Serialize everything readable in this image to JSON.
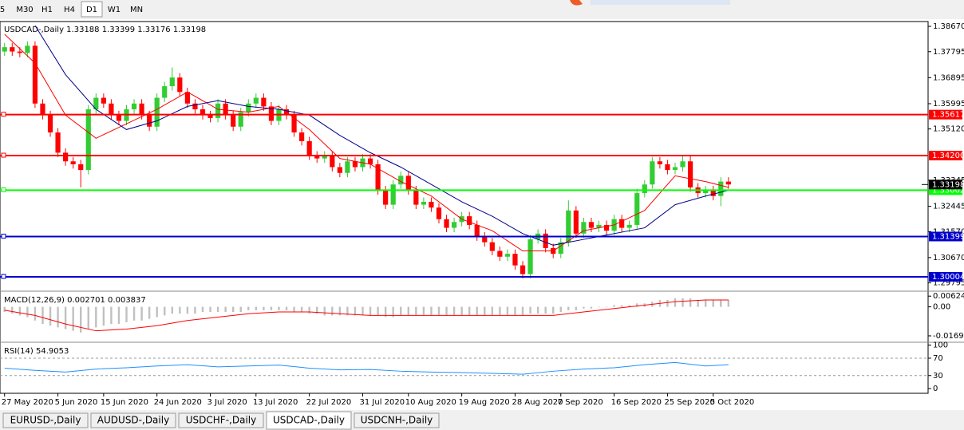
{
  "toolbar": {
    "timeframes": [
      "5",
      "M30",
      "H1",
      "H4",
      "D1",
      "W1",
      "MN"
    ],
    "active": 4
  },
  "chart_data": [
    {
      "type": "candlestick",
      "title": "USDCAD-,Daily",
      "quote": [
        1.33188,
        1.33399,
        1.33176,
        1.33198
      ],
      "up_color": "#32cd32",
      "down_color": "#ff0000",
      "open": [
        1.378,
        1.3795,
        1.378,
        1.3775,
        1.38,
        1.36,
        1.356,
        1.35,
        1.343,
        1.34,
        1.339,
        1.337,
        1.358,
        1.362,
        1.36,
        1.356,
        1.354,
        1.358,
        1.36,
        1.356,
        1.352,
        1.362,
        1.366,
        1.369,
        1.364,
        1.36,
        1.358,
        1.356,
        1.355,
        1.36,
        1.356,
        1.352,
        1.357,
        1.36,
        1.362,
        1.359,
        1.354,
        1.358,
        1.356,
        1.35,
        1.347,
        1.342,
        1.341,
        1.342,
        1.338,
        1.336,
        1.34,
        1.338,
        1.341,
        1.339,
        1.33,
        1.325,
        1.332,
        1.335,
        1.33,
        1.325,
        1.326,
        1.324,
        1.32,
        1.317,
        1.319,
        1.321,
        1.318,
        1.314,
        1.312,
        1.309,
        1.307,
        1.308,
        1.304,
        1.301,
        1.313,
        1.315,
        1.31,
        1.308,
        1.312,
        1.323,
        1.315,
        1.319,
        1.317,
        1.318,
        1.316,
        1.32,
        1.317,
        1.318,
        1.329,
        1.332,
        1.34,
        1.339,
        1.337,
        1.338,
        1.34,
        1.331,
        1.329,
        1.33,
        1.328,
        1.333
      ],
      "high": [
        1.381,
        1.381,
        1.3795,
        1.3815,
        1.3815,
        1.3615,
        1.3575,
        1.3515,
        1.3445,
        1.3415,
        1.3405,
        1.3595,
        1.3635,
        1.3635,
        1.3615,
        1.3575,
        1.3595,
        1.3615,
        1.3615,
        1.3575,
        1.3635,
        1.3675,
        1.3725,
        1.3705,
        1.3655,
        1.3615,
        1.3595,
        1.3575,
        1.3615,
        1.3615,
        1.3575,
        1.3585,
        1.3615,
        1.3635,
        1.3635,
        1.3605,
        1.3595,
        1.3595,
        1.3575,
        1.3515,
        1.3485,
        1.3435,
        1.3435,
        1.3435,
        1.3395,
        1.3415,
        1.3415,
        1.3425,
        1.3425,
        1.3405,
        1.3315,
        1.3335,
        1.3365,
        1.3365,
        1.3315,
        1.3275,
        1.3275,
        1.3255,
        1.3215,
        1.3205,
        1.3225,
        1.3225,
        1.3195,
        1.3155,
        1.3135,
        1.3105,
        1.3095,
        1.3095,
        1.3055,
        1.3145,
        1.3165,
        1.3165,
        1.3115,
        1.3135,
        1.3265,
        1.3245,
        1.3205,
        1.3205,
        1.3195,
        1.3195,
        1.3215,
        1.3215,
        1.3195,
        1.3305,
        1.3335,
        1.3415,
        1.3415,
        1.3405,
        1.3395,
        1.342,
        1.342,
        1.3325,
        1.3315,
        1.3315,
        1.3345,
        1.3345
      ],
      "low": [
        1.3765,
        1.3765,
        1.376,
        1.376,
        1.3585,
        1.3545,
        1.3485,
        1.3415,
        1.3385,
        1.3375,
        1.331,
        1.3355,
        1.3565,
        1.3585,
        1.3545,
        1.3525,
        1.3525,
        1.3565,
        1.3545,
        1.3505,
        1.3505,
        1.3605,
        1.3645,
        1.3625,
        1.3585,
        1.3565,
        1.3545,
        1.3535,
        1.3535,
        1.3545,
        1.3505,
        1.3505,
        1.3555,
        1.3585,
        1.3575,
        1.3525,
        1.3525,
        1.3545,
        1.3485,
        1.3455,
        1.3405,
        1.3395,
        1.3395,
        1.3365,
        1.3345,
        1.3345,
        1.3365,
        1.3365,
        1.3375,
        1.3285,
        1.3235,
        1.3235,
        1.3305,
        1.3285,
        1.3235,
        1.3235,
        1.3225,
        1.3185,
        1.3155,
        1.3155,
        1.3175,
        1.3165,
        1.3125,
        1.3105,
        1.3075,
        1.3055,
        1.3055,
        1.3025,
        1.2995,
        1.2995,
        1.3115,
        1.3085,
        1.3065,
        1.3065,
        1.3105,
        1.3135,
        1.3135,
        1.3155,
        1.3155,
        1.3145,
        1.3145,
        1.3155,
        1.3155,
        1.3165,
        1.3275,
        1.3305,
        1.3375,
        1.3355,
        1.3355,
        1.3365,
        1.3295,
        1.3275,
        1.3275,
        1.3265,
        1.3245,
        1.3305
      ],
      "close": [
        1.3795,
        1.378,
        1.3775,
        1.38,
        1.36,
        1.356,
        1.35,
        1.343,
        1.34,
        1.339,
        1.337,
        1.358,
        1.362,
        1.36,
        1.356,
        1.354,
        1.358,
        1.36,
        1.356,
        1.352,
        1.362,
        1.366,
        1.369,
        1.364,
        1.36,
        1.358,
        1.356,
        1.355,
        1.36,
        1.356,
        1.352,
        1.357,
        1.36,
        1.362,
        1.359,
        1.354,
        1.358,
        1.356,
        1.35,
        1.347,
        1.342,
        1.341,
        1.342,
        1.338,
        1.336,
        1.34,
        1.338,
        1.341,
        1.339,
        1.33,
        1.325,
        1.332,
        1.335,
        1.33,
        1.325,
        1.326,
        1.324,
        1.32,
        1.317,
        1.319,
        1.321,
        1.318,
        1.314,
        1.312,
        1.309,
        1.307,
        1.308,
        1.304,
        1.301,
        1.313,
        1.315,
        1.31,
        1.308,
        1.312,
        1.323,
        1.315,
        1.319,
        1.317,
        1.318,
        1.316,
        1.32,
        1.317,
        1.318,
        1.329,
        1.332,
        1.34,
        1.339,
        1.337,
        1.338,
        1.34,
        1.331,
        1.329,
        1.33,
        1.328,
        1.333,
        1.332
      ],
      "lines": [
        {
          "color": "#ff0000",
          "x": [
            0,
            4,
            8,
            12,
            16,
            20,
            24,
            28,
            32,
            36,
            40,
            44,
            48,
            52,
            56,
            60,
            64,
            68,
            72,
            76,
            80,
            84,
            88,
            92,
            95
          ],
          "values": [
            1.384,
            1.374,
            1.356,
            1.348,
            1.353,
            1.358,
            1.364,
            1.358,
            1.357,
            1.359,
            1.351,
            1.341,
            1.339,
            1.333,
            1.328,
            1.32,
            1.316,
            1.309,
            1.309,
            1.316,
            1.318,
            1.323,
            1.335,
            1.333,
            1.331
          ]
        },
        {
          "color": "#00008b",
          "x": [
            4,
            8,
            12,
            16,
            20,
            24,
            28,
            32,
            36,
            40,
            44,
            48,
            52,
            56,
            60,
            64,
            68,
            72,
            76,
            80,
            84,
            88,
            92,
            95
          ],
          "values": [
            1.387,
            1.37,
            1.358,
            1.351,
            1.354,
            1.359,
            1.361,
            1.359,
            1.358,
            1.356,
            1.349,
            1.343,
            1.338,
            1.332,
            1.326,
            1.321,
            1.315,
            1.311,
            1.313,
            1.315,
            1.317,
            1.325,
            1.328,
            1.33
          ]
        }
      ],
      "levels": [
        {
          "value": 1.35617,
          "color": "#ff0000"
        },
        {
          "value": {
            "value": 1.342,
            "label": "1.34200"
          },
          "color": "#ff0000"
        },
        {
          "value": 1.33002,
          "color": "#00ff00"
        },
        {
          "value": 1.31399,
          "color": "#0000cd"
        },
        {
          "value": 1.30004,
          "color": "#0000cd"
        }
      ],
      "last_price": 1.33198,
      "xlim": [
        -0.6,
        121.2
      ],
      "xticks": [
        {
          "value": 0,
          "label": "27 May 2020"
        },
        {
          "value": 7,
          "label": "5 Jun 2020"
        },
        {
          "value": 13,
          "label": "15 Jun 2020"
        },
        {
          "value": 20,
          "label": "24 Jun 2020"
        },
        {
          "value": 27,
          "label": "3 Jul 2020"
        },
        {
          "value": 33,
          "label": "13 Jul 2020"
        },
        {
          "value": 40,
          "label": "22 Jul 2020"
        },
        {
          "value": 47,
          "label": "31 Jul 2020"
        },
        {
          "value": 53,
          "label": "10 Aug 2020"
        },
        {
          "value": 60,
          "label": "19 Aug 2020"
        },
        {
          "value": 67,
          "label": "28 Aug 2020"
        },
        {
          "value": 73,
          "label": "7 Sep 2020"
        },
        {
          "value": 80,
          "label": "16 Sep 2020"
        },
        {
          "value": 87,
          "label": "25 Sep 2020"
        },
        {
          "value": 93,
          "label": "5 Oct 2020"
        }
      ],
      "ylim": [
        1.2959,
        1.3881
      ],
      "yticks": [
        {
          "value": 1.3867,
          "label": "1.38670"
        },
        1.37795,
        1.36895,
        1.35995,
        {
          "value": 1.3512,
          "label": "1.35120"
        },
        1.33345,
        1.32445,
        {
          "value": 1.3157,
          "label": "1.31570"
        },
        {
          "value": 1.3067,
          "label": "1.30670"
        },
        1.29795
      ]
    },
    {
      "type": "macd",
      "title": "MACD(12,26,9)",
      "readout": [
        0.002701,
        0.003837
      ],
      "color": "#c0c0c0",
      "values": [
        -0.003,
        -0.004,
        -0.005,
        -0.006,
        -0.008,
        -0.01,
        -0.011,
        -0.012,
        -0.013,
        -0.014,
        -0.015,
        -0.013,
        -0.012,
        -0.011,
        -0.01,
        -0.01,
        -0.009,
        -0.008,
        -0.008,
        -0.007,
        -0.006,
        -0.005,
        -0.004,
        -0.004,
        -0.004,
        -0.004,
        -0.003,
        -0.003,
        -0.003,
        -0.003,
        -0.003,
        -0.003,
        -0.002,
        -0.002,
        -0.002,
        -0.002,
        -0.002,
        -0.002,
        -0.003,
        -0.003,
        -0.004,
        -0.004,
        -0.005,
        -0.005,
        -0.005,
        -0.005,
        -0.005,
        -0.005,
        -0.005,
        -0.005,
        -0.006,
        -0.006,
        -0.005,
        -0.005,
        -0.005,
        -0.005,
        -0.005,
        -0.005,
        -0.005,
        -0.005,
        -0.005,
        -0.005,
        -0.005,
        -0.005,
        -0.005,
        -0.005,
        -0.005,
        -0.005,
        -0.005,
        -0.004,
        -0.004,
        -0.004,
        -0.004,
        -0.003,
        -0.002,
        -0.002,
        -0.001,
        -0.001,
        0.0,
        0.0,
        0.001,
        0.001,
        0.001,
        0.002,
        0.002,
        0.003,
        0.004,
        0.004,
        0.005,
        0.005,
        0.005,
        0.004,
        0.004,
        0.004,
        0.004,
        0.004
      ],
      "lines": [
        {
          "color": "#ff0000",
          "x": [
            0,
            4,
            8,
            12,
            16,
            20,
            24,
            28,
            32,
            36,
            40,
            44,
            48,
            52,
            56,
            60,
            64,
            68,
            72,
            76,
            80,
            84,
            88,
            92,
            95
          ],
          "values": [
            -0.002,
            -0.005,
            -0.01,
            -0.014,
            -0.013,
            -0.011,
            -0.008,
            -0.006,
            -0.004,
            -0.003,
            -0.003,
            -0.004,
            -0.005,
            -0.005,
            -0.005,
            -0.005,
            -0.005,
            -0.005,
            -0.005,
            -0.003,
            -0.001,
            0.001,
            0.003,
            0.004,
            0.004
          ]
        }
      ],
      "ylim": [
        -0.0202,
        0.0082
      ],
      "yticks": [
        0.006245,
        {
          "value": 0,
          "label": "0.00"
        },
        -0.016933
      ]
    },
    {
      "type": "rsi",
      "title": "RSI(14)",
      "readout": [
        54.9053
      ],
      "lines": [
        {
          "color": "#1e90ff",
          "x": [
            0,
            4,
            8,
            12,
            16,
            20,
            24,
            28,
            32,
            36,
            40,
            44,
            48,
            52,
            56,
            60,
            64,
            68,
            72,
            76,
            80,
            84,
            88,
            92,
            95
          ],
          "values": [
            47,
            42,
            38,
            45,
            48,
            52,
            55,
            50,
            52,
            54,
            47,
            43,
            44,
            40,
            38,
            37,
            35,
            33,
            40,
            45,
            48,
            55,
            60,
            52,
            55
          ]
        }
      ],
      "ylim": [
        -9,
        103
      ],
      "yticks": [
        100,
        70,
        30,
        0
      ]
    }
  ],
  "tabs": {
    "items": [
      "EURUSD-,Daily",
      "AUDUSD-,Daily",
      "USDCHF-,Daily",
      "USDCAD-,Daily",
      "USDCNH-,Daily"
    ],
    "active": 3
  }
}
